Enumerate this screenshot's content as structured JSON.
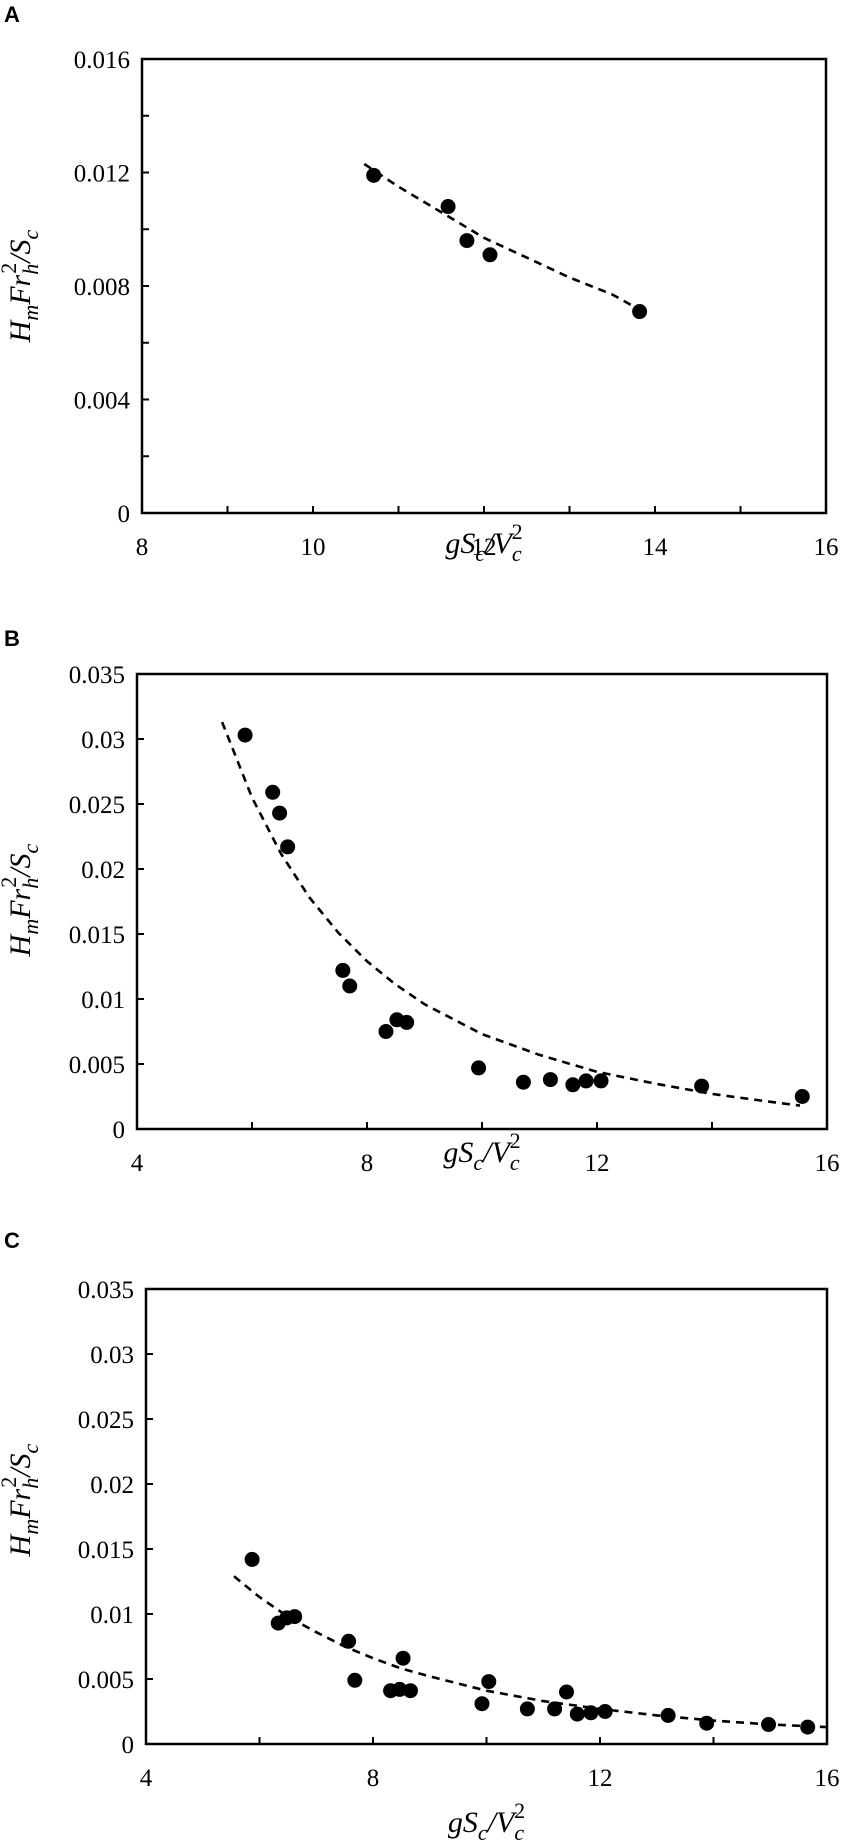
{
  "figure": {
    "panels": [
      {
        "letter": "A"
      },
      {
        "letter": "B"
      },
      {
        "letter": "C"
      }
    ]
  },
  "chart_data": [
    {
      "panel": "A",
      "type": "scatter",
      "title": "",
      "xlabel": "gSc/Vc^2",
      "ylabel": "HmFrh^2/Sc",
      "xlim": [
        8,
        16
      ],
      "ylim": [
        0,
        0.016
      ],
      "xticks": [
        8,
        10,
        12,
        14,
        16
      ],
      "xticks_minor": [
        9,
        11,
        13,
        15
      ],
      "yticks": [
        "0",
        "0.004",
        "0.008",
        "0.012",
        "0.016"
      ],
      "ytick_values": [
        0,
        0.004,
        0.008,
        0.012,
        0.016
      ],
      "yticks_minor": [
        0.002,
        0.006,
        0.01,
        0.014
      ],
      "grid": false,
      "legend": null,
      "series": [
        {
          "name": "data",
          "marker": "filled-circle",
          "color": "#000000",
          "x": [
            10.71,
            11.58,
            11.8,
            12.07,
            13.82
          ],
          "y": [
            0.0119,
            0.0108,
            0.0096,
            0.0091,
            0.0071
          ]
        },
        {
          "name": "fit",
          "style": "dashed-line",
          "color": "#000000",
          "x": [
            10.6,
            11.0,
            11.5,
            12.0,
            12.5,
            13.0,
            13.5,
            13.74
          ],
          "y": [
            0.0123,
            0.0115,
            0.0106,
            0.0097,
            0.009,
            0.0083,
            0.0077,
            0.0073
          ]
        }
      ]
    },
    {
      "panel": "B",
      "type": "scatter",
      "title": "",
      "xlabel": "gSc/Vc^2",
      "ylabel": "HmFrh^2/Sc",
      "xlim": [
        4,
        16
      ],
      "ylim": [
        0,
        0.035
      ],
      "xticks": [
        4,
        8,
        12,
        16
      ],
      "xticks_minor": [
        6,
        10,
        14
      ],
      "yticks": [
        "0",
        "0.005",
        "0.01",
        "0.015",
        "0.02",
        "0.025",
        "0.03",
        "0.035"
      ],
      "ytick_values": [
        0,
        0.005,
        0.01,
        0.015,
        0.02,
        0.025,
        0.03,
        0.035
      ],
      "yticks_minor": [],
      "grid": false,
      "legend": null,
      "series": [
        {
          "name": "data",
          "marker": "filled-circle",
          "color": "#000000",
          "x": [
            5.88,
            6.36,
            6.48,
            6.62,
            7.58,
            7.7,
            8.33,
            8.52,
            8.69,
            9.94,
            10.72,
            11.19,
            11.58,
            11.81,
            12.07,
            13.82,
            15.57
          ],
          "y": [
            0.0303,
            0.0259,
            0.0243,
            0.0217,
            0.0122,
            0.011,
            0.0075,
            0.0084,
            0.0082,
            0.0047,
            0.0036,
            0.0038,
            0.0034,
            0.0037,
            0.0037,
            0.0033,
            0.0025
          ]
        },
        {
          "name": "fit",
          "style": "dashed-line",
          "color": "#000000",
          "x": [
            5.48,
            6.0,
            6.5,
            7.0,
            7.5,
            8.0,
            8.5,
            9.0,
            10.0,
            11.0,
            12.0,
            13.0,
            14.0,
            15.0,
            15.53
          ],
          "y": [
            0.0313,
            0.0255,
            0.0212,
            0.0178,
            0.0151,
            0.0129,
            0.0111,
            0.0096,
            0.0073,
            0.0057,
            0.0044,
            0.0035,
            0.0027,
            0.0021,
            0.0018
          ]
        }
      ]
    },
    {
      "panel": "C",
      "type": "scatter",
      "title": "",
      "xlabel": "gSc/Vc^2",
      "ylabel": "HmFrh^2/Sc",
      "xlim": [
        4,
        16
      ],
      "ylim": [
        0,
        0.035
      ],
      "xticks": [
        4,
        8,
        12,
        16
      ],
      "xticks_minor": [
        6,
        10,
        14
      ],
      "yticks": [
        "0",
        "0.005",
        "0.01",
        "0.015",
        "0.02",
        "0.025",
        "0.03",
        "0.035"
      ],
      "ytick_values": [
        0,
        0.005,
        0.01,
        0.015,
        0.02,
        0.025,
        0.03,
        0.035
      ],
      "yticks_minor": [],
      "grid": false,
      "legend": null,
      "series": [
        {
          "name": "data",
          "marker": "filled-circle",
          "color": "#000000",
          "x": [
            5.87,
            6.33,
            6.48,
            6.62,
            7.57,
            7.68,
            8.31,
            8.47,
            8.53,
            8.66,
            9.92,
            10.04,
            10.72,
            11.2,
            11.41,
            11.6,
            11.84,
            12.09,
            13.2,
            13.88,
            14.97,
            15.66
          ],
          "y": [
            0.0142,
            0.0093,
            0.0097,
            0.0098,
            0.0079,
            0.0049,
            0.0041,
            0.0042,
            0.0066,
            0.0041,
            0.0031,
            0.0048,
            0.0027,
            0.0027,
            0.004,
            0.0023,
            0.0024,
            0.0025,
            0.0022,
            0.0016,
            0.0015,
            0.0013
          ]
        },
        {
          "name": "fit",
          "style": "dashed-line",
          "color": "#000000",
          "x": [
            5.55,
            6.0,
            6.5,
            7.0,
            7.5,
            8.0,
            8.5,
            9.0,
            10.0,
            11.0,
            12.0,
            13.0,
            14.0,
            15.0,
            16.0
          ],
          "y": [
            0.0129,
            0.0113,
            0.0098,
            0.0086,
            0.0075,
            0.0066,
            0.0058,
            0.0052,
            0.0041,
            0.0033,
            0.0027,
            0.0022,
            0.0018,
            0.0015,
            0.0013
          ]
        }
      ]
    }
  ]
}
